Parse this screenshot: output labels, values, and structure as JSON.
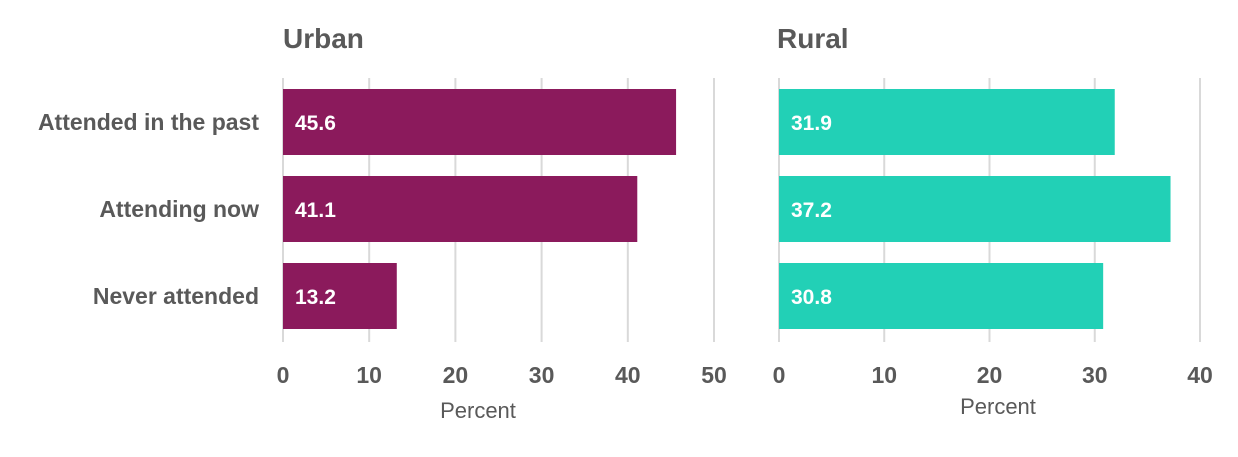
{
  "chart_data": [
    {
      "type": "bar",
      "orientation": "horizontal",
      "title": "Urban",
      "categories": [
        "Attended in the past",
        "Attending now",
        "Never attended"
      ],
      "values": [
        45.6,
        41.1,
        13.2
      ],
      "xlabel": "Percent",
      "xlim": [
        0,
        50
      ],
      "xticks": [
        0,
        10,
        20,
        30,
        40,
        50
      ],
      "color": "#8B1A5C",
      "grid": true
    },
    {
      "type": "bar",
      "orientation": "horizontal",
      "title": "Rural",
      "categories": [
        "Attended in the past",
        "Attending now",
        "Never attended"
      ],
      "values": [
        31.9,
        37.2,
        30.8
      ],
      "xlabel": "Percent",
      "xlim": [
        0,
        40
      ],
      "xticks": [
        0,
        10,
        20,
        30,
        40
      ],
      "color": "#22D0B6",
      "grid": true
    }
  ]
}
